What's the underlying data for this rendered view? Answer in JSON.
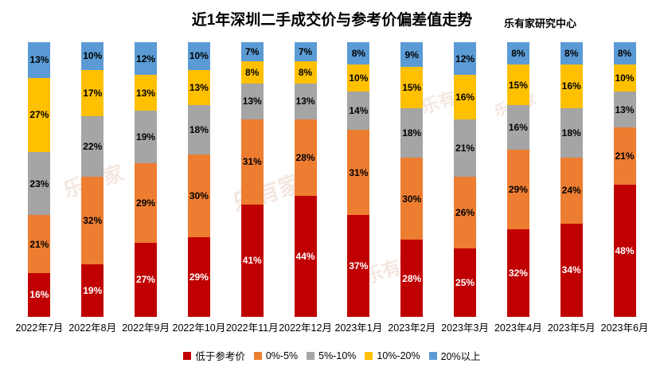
{
  "title": "近1年深圳二手成交价与参考价偏差值走势",
  "credit": "乐有家研究中心",
  "watermark": "乐有家",
  "chart_data": {
    "type": "bar",
    "stacked": true,
    "stacked_total_percent": 100,
    "title": "近1年深圳二手成交价与参考价偏差值走势",
    "xlabel": "",
    "ylabel": "",
    "grid": false,
    "legend_position": "bottom",
    "value_suffix": "%",
    "categories": [
      "2022年7月",
      "2022年8月",
      "2022年9月",
      "2022年10月",
      "2022年11月",
      "2022年12月",
      "2023年1月",
      "2023年2月",
      "2023年3月",
      "2023年4月",
      "2023年5月",
      "2023年6月"
    ],
    "series": [
      {
        "name": "低于参考价",
        "color": "#C00000",
        "label_color": "#FFFFFF",
        "values": [
          16,
          19,
          27,
          29,
          41,
          44,
          37,
          28,
          25,
          32,
          34,
          48
        ]
      },
      {
        "name": "0%-5%",
        "color": "#ED7D31",
        "label_color": "#000000",
        "values": [
          21,
          32,
          29,
          30,
          31,
          28,
          31,
          30,
          26,
          29,
          24,
          21
        ]
      },
      {
        "name": "5%-10%",
        "color": "#A5A5A5",
        "label_color": "#000000",
        "values": [
          23,
          22,
          19,
          18,
          13,
          13,
          14,
          18,
          21,
          16,
          18,
          13
        ]
      },
      {
        "name": "10%-20%",
        "color": "#FFC000",
        "label_color": "#000000",
        "values": [
          27,
          17,
          13,
          13,
          8,
          8,
          10,
          15,
          16,
          15,
          16,
          10
        ]
      },
      {
        "name": "20%以上",
        "color": "#5B9BD5",
        "label_color": "#000000",
        "values": [
          13,
          10,
          12,
          10,
          7,
          7,
          8,
          9,
          12,
          8,
          8,
          8
        ]
      }
    ]
  }
}
